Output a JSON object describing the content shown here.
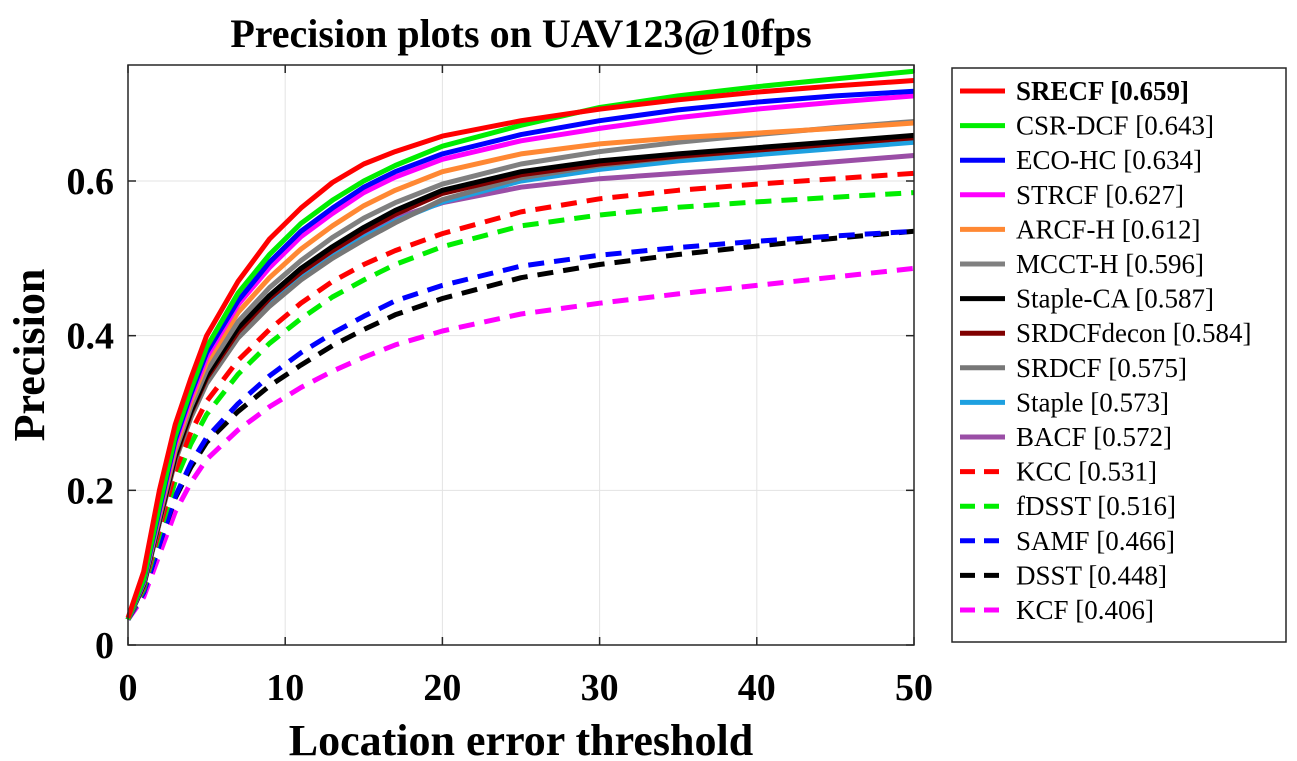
{
  "chart_data": {
    "type": "line",
    "title": "Precision plots on UAV123@10fps",
    "xlabel": "Location error threshold",
    "ylabel": "Precision",
    "xlim": [
      0,
      50
    ],
    "ylim": [
      0,
      0.75
    ],
    "xticks": [
      "0",
      "10",
      "20",
      "30",
      "40",
      "50"
    ],
    "yticks": [
      "0",
      "0.2",
      "0.4",
      "0.6"
    ],
    "grid": true,
    "legend_position": "right",
    "x": [
      0,
      1,
      2,
      3,
      4,
      5,
      7,
      9,
      11,
      13,
      15,
      17,
      20,
      25,
      30,
      35,
      40,
      45,
      50
    ],
    "series": [
      {
        "name": "SRECF [0.659]",
        "color": "#ff0000",
        "style": "solid",
        "values": [
          0.035,
          0.095,
          0.2,
          0.285,
          0.345,
          0.4,
          0.47,
          0.525,
          0.565,
          0.598,
          0.622,
          0.638,
          0.658,
          0.678,
          0.693,
          0.705,
          0.715,
          0.723,
          0.73
        ]
      },
      {
        "name": "CSR-DCF [0.643]",
        "color": "#00ee00",
        "style": "solid",
        "values": [
          0.033,
          0.085,
          0.18,
          0.27,
          0.33,
          0.385,
          0.455,
          0.505,
          0.545,
          0.575,
          0.6,
          0.62,
          0.645,
          0.672,
          0.695,
          0.71,
          0.722,
          0.732,
          0.742
        ]
      },
      {
        "name": "ECO-HC [0.634]",
        "color": "#0000ff",
        "style": "solid",
        "values": [
          0.033,
          0.083,
          0.175,
          0.265,
          0.325,
          0.378,
          0.445,
          0.495,
          0.535,
          0.565,
          0.592,
          0.612,
          0.635,
          0.66,
          0.678,
          0.692,
          0.702,
          0.71,
          0.716
        ]
      },
      {
        "name": "STRCF [0.627]",
        "color": "#ff00ff",
        "style": "solid",
        "values": [
          0.033,
          0.082,
          0.172,
          0.26,
          0.32,
          0.372,
          0.44,
          0.488,
          0.528,
          0.558,
          0.585,
          0.605,
          0.628,
          0.652,
          0.668,
          0.682,
          0.693,
          0.702,
          0.71
        ]
      },
      {
        "name": "ARCF-H [0.612]",
        "color": "#ff8833",
        "style": "solid",
        "values": [
          0.033,
          0.082,
          0.17,
          0.255,
          0.315,
          0.365,
          0.43,
          0.475,
          0.512,
          0.542,
          0.568,
          0.588,
          0.612,
          0.635,
          0.648,
          0.656,
          0.662,
          0.668,
          0.675
        ]
      },
      {
        "name": "MCCT-H [0.596]",
        "color": "#808080",
        "style": "solid",
        "values": [
          0.033,
          0.08,
          0.165,
          0.25,
          0.308,
          0.355,
          0.418,
          0.462,
          0.497,
          0.527,
          0.552,
          0.572,
          0.596,
          0.622,
          0.638,
          0.65,
          0.66,
          0.669,
          0.677
        ]
      },
      {
        "name": "Staple-CA [0.587]",
        "color": "#000000",
        "style": "solid",
        "values": [
          0.033,
          0.078,
          0.162,
          0.245,
          0.302,
          0.348,
          0.41,
          0.452,
          0.487,
          0.515,
          0.54,
          0.562,
          0.588,
          0.612,
          0.626,
          0.635,
          0.643,
          0.651,
          0.659
        ]
      },
      {
        "name": "SRDCFdecon [0.584]",
        "color": "#800000",
        "style": "solid",
        "values": [
          0.033,
          0.078,
          0.16,
          0.242,
          0.3,
          0.345,
          0.405,
          0.448,
          0.482,
          0.51,
          0.535,
          0.557,
          0.584,
          0.608,
          0.622,
          0.632,
          0.64,
          0.648,
          0.656
        ]
      },
      {
        "name": "SRDCF [0.575]",
        "color": "#777777",
        "style": "solid",
        "values": [
          0.033,
          0.077,
          0.158,
          0.238,
          0.294,
          0.338,
          0.397,
          0.438,
          0.472,
          0.5,
          0.524,
          0.546,
          0.576,
          0.604,
          0.62,
          0.631,
          0.64,
          0.648,
          0.656
        ]
      },
      {
        "name": "Staple [0.573]",
        "color": "#1ea0e0",
        "style": "solid",
        "values": [
          0.033,
          0.077,
          0.158,
          0.24,
          0.296,
          0.34,
          0.398,
          0.44,
          0.474,
          0.502,
          0.527,
          0.548,
          0.573,
          0.6,
          0.615,
          0.626,
          0.634,
          0.642,
          0.65
        ]
      },
      {
        "name": "BACF [0.572]",
        "color": "#9a4ea6",
        "style": "solid",
        "values": [
          0.033,
          0.077,
          0.158,
          0.24,
          0.296,
          0.34,
          0.398,
          0.44,
          0.476,
          0.505,
          0.53,
          0.552,
          0.572,
          0.592,
          0.603,
          0.61,
          0.617,
          0.625,
          0.633
        ]
      },
      {
        "name": "KCC [0.531]",
        "color": "#ff0000",
        "style": "dashed",
        "values": [
          0.033,
          0.075,
          0.15,
          0.225,
          0.275,
          0.315,
          0.368,
          0.408,
          0.442,
          0.47,
          0.492,
          0.51,
          0.532,
          0.56,
          0.577,
          0.588,
          0.596,
          0.603,
          0.61
        ]
      },
      {
        "name": "fDSST [0.516]",
        "color": "#00ee00",
        "style": "dashed",
        "values": [
          0.033,
          0.072,
          0.143,
          0.212,
          0.26,
          0.298,
          0.35,
          0.39,
          0.422,
          0.45,
          0.472,
          0.492,
          0.515,
          0.542,
          0.556,
          0.566,
          0.573,
          0.579,
          0.585
        ]
      },
      {
        "name": "SAMF [0.466]",
        "color": "#0000ff",
        "style": "dashed",
        "values": [
          0.033,
          0.068,
          0.13,
          0.192,
          0.235,
          0.268,
          0.312,
          0.348,
          0.378,
          0.403,
          0.425,
          0.445,
          0.465,
          0.49,
          0.504,
          0.514,
          0.522,
          0.529,
          0.535
        ]
      },
      {
        "name": "DSST [0.448]",
        "color": "#000000",
        "style": "dashed",
        "values": [
          0.033,
          0.068,
          0.13,
          0.19,
          0.23,
          0.262,
          0.302,
          0.335,
          0.362,
          0.387,
          0.408,
          0.427,
          0.448,
          0.475,
          0.492,
          0.505,
          0.516,
          0.526,
          0.535
        ]
      },
      {
        "name": "KCF [0.406]",
        "color": "#ff00ff",
        "style": "dashed",
        "values": [
          0.033,
          0.062,
          0.117,
          0.172,
          0.21,
          0.24,
          0.278,
          0.308,
          0.333,
          0.354,
          0.372,
          0.388,
          0.406,
          0.428,
          0.442,
          0.454,
          0.465,
          0.476,
          0.487
        ]
      }
    ]
  }
}
